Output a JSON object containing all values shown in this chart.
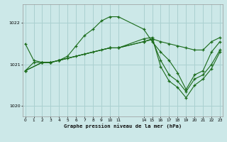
{
  "title": "Graphe pression niveau de la mer (hPa)",
  "bg_color": "#cce8e8",
  "grid_color": "#aad0d0",
  "line_color": "#1a6b1a",
  "ylim": [
    1019.75,
    1022.45
  ],
  "yticks": [
    1020,
    1021,
    1022
  ],
  "xlim": [
    -0.3,
    23.3
  ],
  "xticks": [
    0,
    1,
    2,
    3,
    4,
    5,
    6,
    7,
    8,
    9,
    10,
    11,
    14,
    15,
    16,
    17,
    18,
    19,
    20,
    21,
    22,
    23
  ],
  "series": [
    {
      "x": [
        0,
        1,
        2,
        3,
        4,
        5,
        6,
        7,
        8,
        9,
        10,
        11,
        14,
        15,
        16,
        17,
        18,
        19,
        20,
        21,
        22,
        23
      ],
      "y": [
        1021.5,
        1021.1,
        1021.05,
        1021.05,
        1021.1,
        1021.2,
        1021.45,
        1021.7,
        1021.85,
        1022.05,
        1022.15,
        1022.15,
        1021.85,
        1021.55,
        1021.3,
        1021.1,
        1020.8,
        1020.4,
        1020.75,
        1020.85,
        1021.3,
        1021.55
      ]
    },
    {
      "x": [
        0,
        1,
        2,
        3,
        4,
        5,
        6,
        7,
        8,
        9,
        10,
        11,
        14,
        15,
        16,
        17,
        18,
        19,
        20,
        21,
        22,
        23
      ],
      "y": [
        1020.85,
        1021.05,
        1021.05,
        1021.05,
        1021.1,
        1021.15,
        1021.2,
        1021.25,
        1021.3,
        1021.35,
        1021.4,
        1021.4,
        1021.55,
        1021.62,
        1021.55,
        1021.5,
        1021.45,
        1021.4,
        1021.35,
        1021.35,
        1021.55,
        1021.65
      ]
    },
    {
      "x": [
        0,
        2,
        3,
        4,
        10,
        11,
        14,
        15,
        16,
        17,
        18,
        19,
        20,
        21,
        22,
        23
      ],
      "y": [
        1020.85,
        1021.05,
        1021.05,
        1021.1,
        1021.4,
        1021.4,
        1021.55,
        1021.6,
        1021.1,
        1020.75,
        1020.6,
        1020.35,
        1020.65,
        1020.75,
        1021.0,
        1021.35
      ]
    },
    {
      "x": [
        0,
        2,
        3,
        4,
        10,
        11,
        14,
        15,
        16,
        17,
        18,
        19,
        20,
        21,
        22,
        23
      ],
      "y": [
        1020.85,
        1021.05,
        1021.05,
        1021.1,
        1021.4,
        1021.4,
        1021.62,
        1021.65,
        1020.95,
        1020.6,
        1020.45,
        1020.2,
        1020.5,
        1020.65,
        1020.9,
        1021.3
      ]
    }
  ]
}
